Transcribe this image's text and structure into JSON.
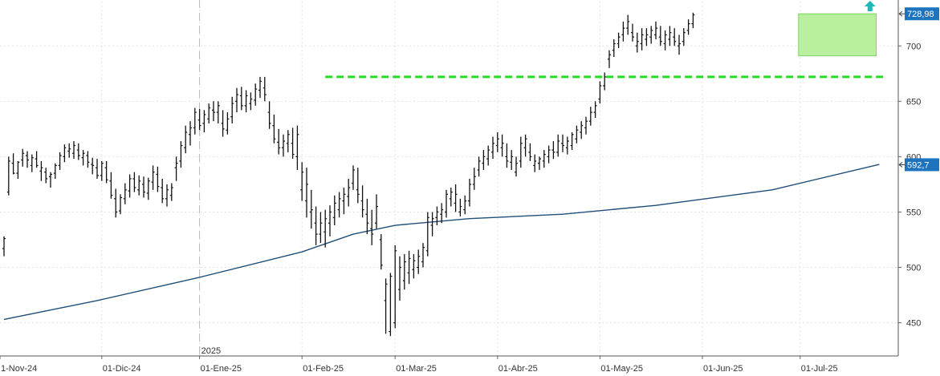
{
  "chart_data": {
    "type": "bar",
    "subtype": "ohlc",
    "y_axis_position": "right",
    "ylim": [
      420,
      740
    ],
    "grid": true,
    "y_ticks": [
      450,
      500,
      550,
      600,
      650,
      700
    ],
    "x_ticks": [
      {
        "label": "1-Nov-24",
        "index": 0
      },
      {
        "label": "01-Dic-24",
        "index": 21
      },
      {
        "label": "01-Ene-25",
        "index": 42
      },
      {
        "label": "01-Feb-25",
        "index": 64
      },
      {
        "label": "01-Mar-25",
        "index": 84
      },
      {
        "label": "01-Abr-25",
        "index": 106
      },
      {
        "label": "01-May-25",
        "index": 128
      },
      {
        "label": "01-Jun-25",
        "index": 150
      },
      {
        "label": "01-Jul-25",
        "index": 171
      }
    ],
    "year_marker": {
      "label": "2025",
      "index": 42
    },
    "price_labels": [
      {
        "value": "728,98",
        "y": 728.98,
        "color": "#1e73be"
      },
      {
        "value": "592,7",
        "y": 592.7,
        "color": "#1e73be"
      }
    ],
    "resistance": {
      "y": 672,
      "start_index": 69,
      "color": "#22dd22"
    },
    "range_box": {
      "y_low": 691,
      "y_high": 729,
      "start_index": 171,
      "end_index": 187,
      "color": "#b8f0a0"
    },
    "arrow": {
      "direction": "up",
      "index": 186,
      "color": "#1fb8b8"
    },
    "moving_average": {
      "color": "#1f4e79",
      "points": [
        [
          0,
          453
        ],
        [
          20,
          470
        ],
        [
          42,
          491
        ],
        [
          64,
          514
        ],
        [
          75,
          530
        ],
        [
          84,
          538
        ],
        [
          100,
          544
        ],
        [
          120,
          548
        ],
        [
          140,
          556
        ],
        [
          165,
          570
        ],
        [
          188,
          593
        ]
      ]
    },
    "ohlc": [
      [
        517,
        528,
        510,
        526
      ],
      [
        568,
        600,
        565,
        596
      ],
      [
        594,
        603,
        584,
        585
      ],
      [
        585,
        596,
        580,
        595
      ],
      [
        597,
        607,
        591,
        603
      ],
      [
        601,
        605,
        590,
        597
      ],
      [
        592,
        602,
        586,
        599
      ],
      [
        598,
        605,
        590,
        592
      ],
      [
        587,
        596,
        578,
        590
      ],
      [
        586,
        590,
        576,
        580
      ],
      [
        582,
        586,
        572,
        584
      ],
      [
        585,
        594,
        580,
        592
      ],
      [
        592,
        604,
        588,
        601
      ],
      [
        600,
        611,
        595,
        608
      ],
      [
        605,
        612,
        599,
        607
      ],
      [
        603,
        614,
        598,
        610
      ],
      [
        606,
        612,
        597,
        601
      ],
      [
        599,
        606,
        592,
        603
      ],
      [
        601,
        605,
        590,
        595
      ],
      [
        593,
        599,
        584,
        592
      ],
      [
        590,
        598,
        580,
        583
      ],
      [
        583,
        596,
        578,
        594
      ],
      [
        590,
        596,
        576,
        579
      ],
      [
        578,
        586,
        562,
        565
      ],
      [
        562,
        571,
        545,
        550
      ],
      [
        551,
        566,
        548,
        563
      ],
      [
        562,
        576,
        557,
        570
      ],
      [
        569,
        584,
        563,
        580
      ],
      [
        580,
        586,
        568,
        572
      ],
      [
        570,
        583,
        565,
        578
      ],
      [
        575,
        582,
        563,
        568
      ],
      [
        567,
        581,
        561,
        578
      ],
      [
        577,
        592,
        570,
        586
      ],
      [
        584,
        591,
        568,
        573
      ],
      [
        572,
        580,
        558,
        562
      ],
      [
        562,
        575,
        555,
        570
      ],
      [
        565,
        576,
        560,
        572
      ],
      [
        590,
        600,
        578,
        594
      ],
      [
        596,
        614,
        590,
        610
      ],
      [
        608,
        628,
        603,
        622
      ],
      [
        620,
        632,
        610,
        626
      ],
      [
        626,
        644,
        620,
        640
      ],
      [
        633,
        643,
        624,
        628
      ],
      [
        630,
        642,
        622,
        638
      ],
      [
        634,
        648,
        630,
        644
      ],
      [
        642,
        650,
        632,
        640
      ],
      [
        640,
        650,
        630,
        646
      ],
      [
        630,
        642,
        618,
        625
      ],
      [
        624,
        640,
        620,
        634
      ],
      [
        636,
        654,
        630,
        648
      ],
      [
        650,
        662,
        640,
        656
      ],
      [
        655,
        663,
        642,
        646
      ],
      [
        646,
        660,
        640,
        655
      ],
      [
        648,
        658,
        642,
        652
      ],
      [
        651,
        666,
        646,
        661
      ],
      [
        660,
        672,
        653,
        668
      ],
      [
        662,
        672,
        650,
        656
      ],
      [
        640,
        650,
        625,
        630
      ],
      [
        628,
        638,
        612,
        616
      ],
      [
        613,
        625,
        602,
        608
      ],
      [
        608,
        620,
        600,
        614
      ],
      [
        612,
        624,
        604,
        620
      ],
      [
        612,
        626,
        598,
        602
      ],
      [
        600,
        628,
        588,
        620
      ],
      [
        570,
        595,
        560,
        586
      ],
      [
        560,
        590,
        545,
        575
      ],
      [
        550,
        570,
        535,
        552
      ],
      [
        540,
        555,
        520,
        530
      ],
      [
        530,
        550,
        522,
        540
      ],
      [
        532,
        552,
        518,
        544
      ],
      [
        540,
        556,
        528,
        550
      ],
      [
        545,
        565,
        538,
        558
      ],
      [
        552,
        568,
        545,
        562
      ],
      [
        560,
        572,
        548,
        566
      ],
      [
        564,
        580,
        555,
        572
      ],
      [
        576,
        592,
        570,
        588
      ],
      [
        570,
        590,
        558,
        566
      ],
      [
        560,
        574,
        545,
        552
      ],
      [
        548,
        562,
        530,
        540
      ],
      [
        535,
        552,
        520,
        530
      ],
      [
        540,
        566,
        535,
        555
      ],
      [
        525,
        530,
        498,
        502
      ],
      [
        470,
        490,
        440,
        485
      ],
      [
        442,
        495,
        438,
        492
      ],
      [
        450,
        520,
        445,
        515
      ],
      [
        480,
        510,
        470,
        500
      ],
      [
        488,
        512,
        480,
        505
      ],
      [
        495,
        515,
        485,
        508
      ],
      [
        498,
        512,
        490,
        506
      ],
      [
        500,
        516,
        494,
        510
      ],
      [
        505,
        522,
        500,
        518
      ],
      [
        515,
        550,
        510,
        545
      ],
      [
        538,
        550,
        528,
        544
      ],
      [
        545,
        555,
        538,
        550
      ],
      [
        548,
        558,
        540,
        552
      ],
      [
        550,
        570,
        545,
        566
      ],
      [
        562,
        572,
        555,
        568
      ],
      [
        558,
        575,
        550,
        566
      ],
      [
        550,
        562,
        546,
        555
      ],
      [
        552,
        565,
        548,
        560
      ],
      [
        560,
        580,
        555,
        575
      ],
      [
        575,
        590,
        570,
        582
      ],
      [
        588,
        600,
        582,
        596
      ],
      [
        594,
        606,
        588,
        600
      ],
      [
        598,
        610,
        592,
        606
      ],
      [
        604,
        618,
        598,
        612
      ],
      [
        610,
        622,
        604,
        616
      ],
      [
        608,
        620,
        600,
        612
      ],
      [
        600,
        612,
        590,
        596
      ],
      [
        595,
        606,
        588,
        600
      ],
      [
        586,
        600,
        582,
        594
      ],
      [
        596,
        618,
        590,
        612
      ],
      [
        608,
        620,
        600,
        616
      ],
      [
        604,
        612,
        596,
        600
      ],
      [
        592,
        602,
        586,
        596
      ],
      [
        594,
        600,
        588,
        598
      ],
      [
        596,
        606,
        590,
        602
      ],
      [
        600,
        610,
        594,
        606
      ],
      [
        606,
        614,
        598,
        604
      ],
      [
        604,
        620,
        600,
        614
      ],
      [
        612,
        620,
        604,
        610
      ],
      [
        608,
        618,
        602,
        614
      ],
      [
        610,
        622,
        606,
        620
      ],
      [
        616,
        628,
        612,
        624
      ],
      [
        622,
        632,
        616,
        628
      ],
      [
        626,
        636,
        620,
        632
      ],
      [
        632,
        645,
        628,
        640
      ],
      [
        640,
        650,
        635,
        646
      ],
      [
        652,
        668,
        648,
        664
      ],
      [
        664,
        676,
        660,
        672
      ],
      [
        688,
        696,
        680,
        692
      ],
      [
        696,
        706,
        690,
        702
      ],
      [
        702,
        712,
        698,
        708
      ],
      [
        710,
        722,
        704,
        716
      ],
      [
        716,
        728,
        710,
        722
      ],
      [
        712,
        720,
        704,
        708
      ],
      [
        700,
        712,
        694,
        704
      ],
      [
        702,
        716,
        696,
        710
      ],
      [
        706,
        716,
        700,
        710
      ],
      [
        708,
        718,
        702,
        714
      ],
      [
        710,
        722,
        706,
        716
      ],
      [
        708,
        718,
        700,
        704
      ],
      [
        702,
        714,
        696,
        710
      ],
      [
        706,
        718,
        700,
        712
      ],
      [
        708,
        716,
        700,
        704
      ],
      [
        700,
        710,
        692,
        702
      ],
      [
        704,
        716,
        700,
        712
      ],
      [
        714,
        724,
        710,
        720
      ],
      [
        720,
        730,
        716,
        728
      ]
    ]
  }
}
